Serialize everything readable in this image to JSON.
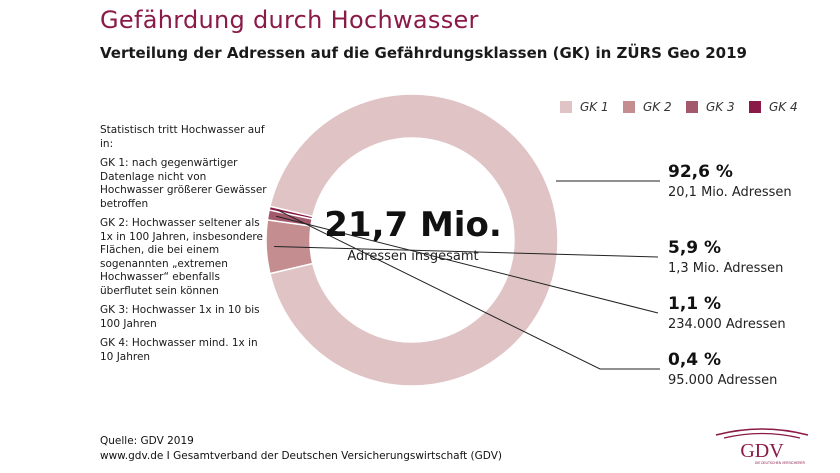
{
  "title": "Gefährdung durch Hochwasser",
  "subtitle": "Verteilung der Adressen auf die Gefährdungsklassen (GK) in ZÜRS Geo 2019",
  "notes": [
    "Statistisch tritt Hochwasser auf in:",
    "GK 1: nach gegenwärtiger Datenlage nicht von Hochwasser größerer Gewässer betroffen",
    "GK 2: Hochwasser seltener als 1x in 100 Jahren, insbesondere Flächen, die bei einem sogenannten „extremen Hochwasser“ ebenfalls überflutet sein können",
    "GK 3: Hochwasser 1x in 10 bis 100 Jahren",
    "GK 4: Hochwasser mind. 1x in 10 Jahren"
  ],
  "center": {
    "value": "21,7 Mio.",
    "label": "Adressen insgesamt"
  },
  "callouts": [
    {
      "pct": "92,6 %",
      "count": "20,1 Mio. Adressen"
    },
    {
      "pct": "5,9 %",
      "count": "1,3 Mio. Adressen"
    },
    {
      "pct": "1,1 %",
      "count": "234.000 Adressen"
    },
    {
      "pct": "0,4 %",
      "count": "95.000 Adressen"
    }
  ],
  "source": {
    "line1": "Quelle: GDV 2019",
    "line2": "www.gdv.de I Gesamtverband der Deutschen Versicherungswirtschaft (GDV)"
  },
  "logo": {
    "text": "GDV",
    "tagline": "DIE DEUTSCHEN VERSICHERER"
  },
  "chart_data": {
    "type": "pie",
    "donut": true,
    "title": "Gefährdung durch Hochwasser",
    "subtitle": "Verteilung der Adressen auf die Gefährdungsklassen (GK) in ZÜRS Geo 2019",
    "categories": [
      "GK 1",
      "GK 2",
      "GK 3",
      "GK 4"
    ],
    "values": [
      92.6,
      5.9,
      1.1,
      0.4
    ],
    "counts": [
      "20,1 Mio. Adressen",
      "1,3 Mio. Adressen",
      "234.000 Adressen",
      "95.000 Adressen"
    ],
    "colors": [
      "#e0c3c5",
      "#c48e91",
      "#a3596b",
      "#8a1a47"
    ],
    "total": "21,7 Mio.",
    "legend": "top-right"
  }
}
